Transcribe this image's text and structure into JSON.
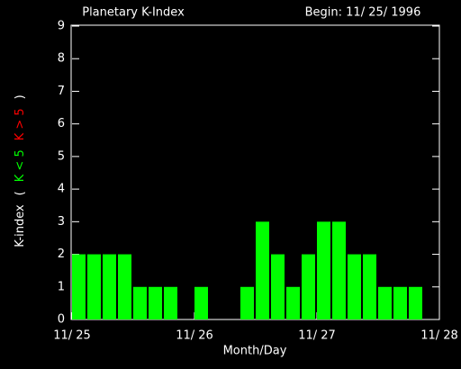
{
  "chart_data": {
    "type": "bar",
    "title": "Planetary K-Index",
    "subtitle": "Begin: 11/ 25/ 1996",
    "xlabel": "Month/Day",
    "ylabel": [
      "K-index",
      "(",
      "K < 5",
      "K > 5",
      ")"
    ],
    "ylabel_colors": [
      "#ffffff",
      "#ffffff",
      "#00ff00",
      "#ff0000",
      "#ffffff"
    ],
    "x": [
      0,
      0.125,
      0.25,
      0.375,
      0.5,
      0.625,
      0.75,
      0.875,
      1,
      1.125,
      1.25,
      1.375,
      1.5,
      1.625,
      1.75,
      1.875,
      2,
      2.125,
      2.25,
      2.375,
      2.5,
      2.625,
      2.75,
      2.875
    ],
    "values": [
      2,
      2,
      2,
      2,
      1,
      1,
      1,
      0,
      1,
      0,
      0,
      1,
      3,
      2,
      1,
      2,
      3,
      3,
      2,
      2,
      1,
      1,
      1,
      0
    ],
    "color": "#00ff00",
    "xlim": [
      0,
      3
    ],
    "xticks": [
      {
        "value": 0,
        "label": "11/ 25"
      },
      {
        "value": 1,
        "label": "11/ 26"
      },
      {
        "value": 2,
        "label": "11/ 27"
      },
      {
        "value": 3,
        "label": "11/ 28"
      }
    ],
    "ylim": [
      0,
      9
    ],
    "yticks": [
      0,
      1,
      2,
      3,
      4,
      5,
      6,
      7,
      8,
      9
    ]
  }
}
